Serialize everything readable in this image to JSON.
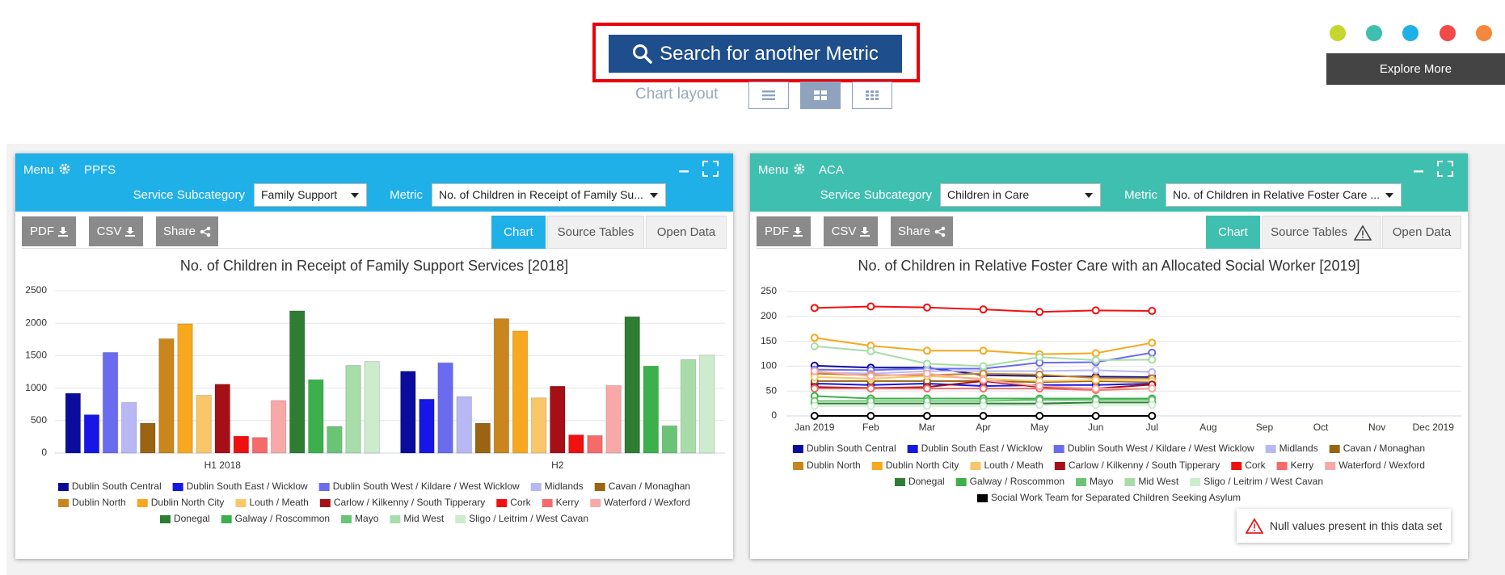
{
  "header": {
    "search_button": "Search for another Metric",
    "layout_label": "Chart layout",
    "explore_button": "Explore More"
  },
  "panels": [
    {
      "menu": "Menu",
      "name": "PPFS",
      "subcategory_label": "Service Subcategory",
      "subcategory": "Family Support",
      "metric_label": "Metric",
      "metric": "No. of Children in Receipt of Family Su...",
      "buttons": [
        "PDF",
        "CSV",
        "Share"
      ],
      "tabs": [
        "Chart",
        "Source Tables",
        "Open Data"
      ],
      "chart_data": {
        "type": "bar",
        "title": "No. of Children in Receipt of Family Support Services [2018]",
        "categories": [
          "H1 2018",
          "H2"
        ],
        "ylim": [
          0,
          2500
        ],
        "yticks": [
          0,
          500,
          1000,
          1500,
          2000,
          2500
        ],
        "grid": true,
        "series": [
          {
            "name": "Dublin South Central",
            "color": "#0c0c9c",
            "values": [
              920,
              1260
            ]
          },
          {
            "name": "Dublin South East / Wicklow",
            "color": "#1616e6",
            "values": [
              590,
              830
            ]
          },
          {
            "name": "Dublin South West / Kildare / West Wicklow",
            "color": "#6b6bf0",
            "values": [
              1550,
              1390
            ]
          },
          {
            "name": "Midlands",
            "color": "#b8b8f4",
            "values": [
              780,
              870
            ]
          },
          {
            "name": "Cavan / Monaghan",
            "color": "#9a6412",
            "values": [
              460,
              460
            ]
          },
          {
            "name": "Dublin North",
            "color": "#c8861c",
            "values": [
              1760,
              2070
            ]
          },
          {
            "name": "Dublin North City",
            "color": "#f7a81c",
            "values": [
              1990,
              1880
            ]
          },
          {
            "name": "Louth / Meath",
            "color": "#f9c66a",
            "values": [
              890,
              850
            ]
          },
          {
            "name": "Carlow / Kilkenny / South Tipperary",
            "color": "#a50f15",
            "values": [
              1060,
              1030
            ]
          },
          {
            "name": "Cork",
            "color": "#f01010",
            "values": [
              260,
              280
            ]
          },
          {
            "name": "Kerry",
            "color": "#f56a6a",
            "values": [
              240,
              270
            ]
          },
          {
            "name": "Waterford / Wexford",
            "color": "#f9a8a8",
            "values": [
              810,
              1040
            ]
          },
          {
            "name": "Donegal",
            "color": "#2e7d32",
            "values": [
              2190,
              2100
            ]
          },
          {
            "name": "Galway / Roscommon",
            "color": "#3cb04a",
            "values": [
              1130,
              1340
            ]
          },
          {
            "name": "Mayo",
            "color": "#6ac476",
            "values": [
              410,
              420
            ]
          },
          {
            "name": "Mid West",
            "color": "#a8dca8",
            "values": [
              1350,
              1440
            ]
          },
          {
            "name": "Sligo / Leitrim / West Cavan",
            "color": "#cdeccd",
            "values": [
              1410,
              1510
            ]
          }
        ]
      }
    },
    {
      "menu": "Menu",
      "name": "ACA",
      "subcategory_label": "Service Subcategory",
      "subcategory": "Children in Care",
      "metric_label": "Metric",
      "metric": "No. of Children in Relative Foster Care ...",
      "buttons": [
        "PDF",
        "CSV",
        "Share"
      ],
      "tabs": [
        "Chart",
        "Source Tables",
        "Open Data"
      ],
      "notice": "Null values present in this data set",
      "chart_data": {
        "type": "line",
        "title": "No. of Children in Relative Foster Care with an Allocated Social Worker [2019]",
        "categories": [
          "Jan 2019",
          "Feb",
          "Mar",
          "Apr",
          "May",
          "Jun",
          "Jul",
          "Aug",
          "Sep",
          "Oct",
          "Nov",
          "Dec 2019"
        ],
        "ylim": [
          0,
          250
        ],
        "yticks": [
          0,
          50,
          100,
          150,
          200,
          250
        ],
        "grid": true,
        "series": [
          {
            "name": "Dublin South Central",
            "color": "#0c0c9c",
            "values": [
              101,
              97,
              97,
              82,
              80,
              79,
              78,
              null,
              null,
              null,
              null,
              null
            ]
          },
          {
            "name": "Dublin South East / Wicklow",
            "color": "#1616e6",
            "values": [
              65,
              62,
              65,
              60,
              62,
              62,
              65,
              null,
              null,
              null,
              null,
              null
            ]
          },
          {
            "name": "Dublin South West / Kildare / West Wicklow",
            "color": "#6b6bf0",
            "values": [
              93,
              92,
              95,
              95,
              107,
              108,
              127,
              null,
              null,
              null,
              null,
              null
            ]
          },
          {
            "name": "Midlands",
            "color": "#b8b8f4",
            "values": [
              88,
              85,
              90,
              90,
              90,
              92,
              88,
              null,
              null,
              null,
              null,
              null
            ]
          },
          {
            "name": "Cavan / Monaghan",
            "color": "#9a6412",
            "values": [
              70,
              70,
              70,
              70,
              68,
              70,
              68,
              null,
              null,
              null,
              null,
              null
            ]
          },
          {
            "name": "Dublin North",
            "color": "#c8861c",
            "values": [
              85,
              82,
              82,
              85,
              83,
              76,
              75,
              null,
              null,
              null,
              null,
              null
            ]
          },
          {
            "name": "Dublin North City",
            "color": "#f7a81c",
            "values": [
              157,
              141,
              131,
              131,
              124,
              126,
              147,
              null,
              null,
              null,
              null,
              null
            ]
          },
          {
            "name": "Louth / Meath",
            "color": "#f9c66a",
            "values": [
              78,
              75,
              80,
              75,
              70,
              72,
              70,
              null,
              null,
              null,
              null,
              null
            ]
          },
          {
            "name": "Carlow / Kilkenny / South Tipperary",
            "color": "#a50f15",
            "values": [
              58,
              56,
              58,
              70,
              58,
              55,
              63,
              null,
              null,
              null,
              null,
              null
            ]
          },
          {
            "name": "Cork",
            "color": "#f01010",
            "values": [
              217,
              220,
              218,
              214,
              209,
              212,
              211,
              null,
              null,
              null,
              null,
              null
            ]
          },
          {
            "name": "Kerry",
            "color": "#f56a6a",
            "values": [
              55,
              55,
              55,
              55,
              55,
              52,
              55,
              null,
              null,
              null,
              null,
              null
            ]
          },
          {
            "name": "Waterford / Wexford",
            "color": "#f9a8a8",
            "values": [
              90,
              80,
              85,
              72,
              60,
              55,
              55,
              null,
              null,
              null,
              null,
              null
            ]
          },
          {
            "name": "Donegal",
            "color": "#2e7d32",
            "values": [
              25,
              25,
              25,
              25,
              25,
              27,
              27,
              null,
              null,
              null,
              null,
              null
            ]
          },
          {
            "name": "Galway / Roscommon",
            "color": "#3cb04a",
            "values": [
              40,
              35,
              35,
              35,
              35,
              35,
              35,
              null,
              null,
              null,
              null,
              null
            ]
          },
          {
            "name": "Mayo",
            "color": "#6ac476",
            "values": [
              30,
              30,
              30,
              30,
              32,
              32,
              32,
              null,
              null,
              null,
              null,
              null
            ]
          },
          {
            "name": "Mid West",
            "color": "#a8dca8",
            "values": [
              140,
              130,
              105,
              100,
              118,
              112,
              113,
              null,
              null,
              null,
              null,
              null
            ]
          },
          {
            "name": "Sligo / Leitrim / West Cavan",
            "color": "#cdeccd",
            "values": [
              20,
              20,
              20,
              20,
              22,
              22,
              22,
              null,
              null,
              null,
              null,
              null
            ]
          },
          {
            "name": "Social Work Team for Separated Children Seeking Asylum",
            "color": "#000000",
            "values": [
              0,
              0,
              0,
              0,
              0,
              0,
              0,
              null,
              null,
              null,
              null,
              null
            ]
          }
        ]
      }
    }
  ]
}
